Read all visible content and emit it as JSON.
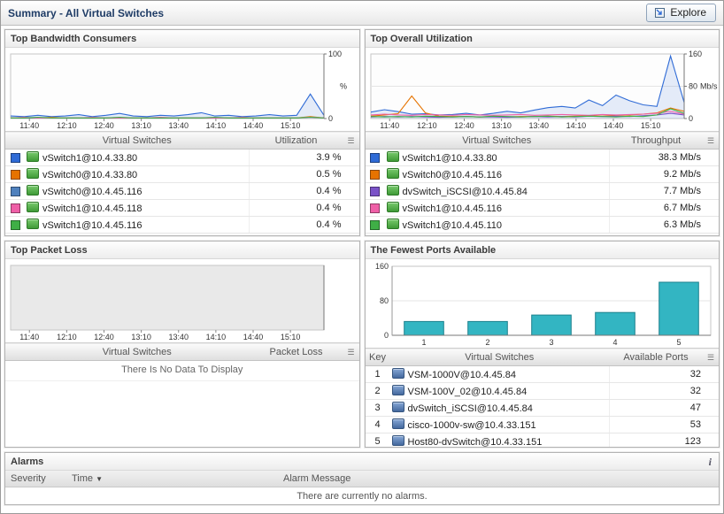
{
  "header": {
    "title": "Summary - All Virtual Switches",
    "explore_label": "Explore"
  },
  "panels": {
    "bandwidth": {
      "title": "Top Bandwidth Consumers",
      "columns": {
        "name": "Virtual Switches",
        "value": "Utilization"
      },
      "rows": [
        {
          "color": "#2f6bd6",
          "name": "vSwitch1@10.4.33.80",
          "value": "3.9 %"
        },
        {
          "color": "#e67300",
          "name": "vSwitch0@10.4.33.80",
          "value": "0.5 %"
        },
        {
          "color": "#4f81bd",
          "name": "vSwitch0@10.4.45.116",
          "value": "0.4 %"
        },
        {
          "color": "#ef5fa7",
          "name": "vSwitch1@10.4.45.118",
          "value": "0.4 %"
        },
        {
          "color": "#3faf46",
          "name": "vSwitch1@10.4.45.116",
          "value": "0.4 %"
        }
      ]
    },
    "utilization": {
      "title": "Top Overall Utilization",
      "columns": {
        "name": "Virtual Switches",
        "value": "Throughput"
      },
      "rows": [
        {
          "color": "#2f6bd6",
          "name": "vSwitch1@10.4.33.80",
          "value": "38.3 Mb/s"
        },
        {
          "color": "#e67300",
          "name": "vSwitch0@10.4.45.116",
          "value": "9.2 Mb/s"
        },
        {
          "color": "#7a52c7",
          "name": "dvSwitch_iSCSI@10.4.45.84",
          "value": "7.7 Mb/s"
        },
        {
          "color": "#ef5fa7",
          "name": "vSwitch1@10.4.45.116",
          "value": "6.7 Mb/s"
        },
        {
          "color": "#3faf46",
          "name": "vSwitch1@10.4.45.110",
          "value": "6.3 Mb/s"
        }
      ]
    },
    "packetloss": {
      "title": "Top Packet Loss",
      "columns": {
        "name": "Virtual Switches",
        "value": "Packet Loss"
      },
      "empty_message": "There Is No Data To Display"
    },
    "ports": {
      "title": "The Fewest Ports Available",
      "columns": {
        "key": "Key",
        "name": "Virtual Switches",
        "value": "Available Ports"
      },
      "rows": [
        {
          "key": "1",
          "name": "VSM-1000V@10.4.45.84",
          "value": "32"
        },
        {
          "key": "2",
          "name": "VSM-100V_02@10.4.45.84",
          "value": "32"
        },
        {
          "key": "3",
          "name": "dvSwitch_iSCSI@10.4.45.84",
          "value": "47"
        },
        {
          "key": "4",
          "name": "cisco-1000v-sw@10.4.33.151",
          "value": "53"
        },
        {
          "key": "5",
          "name": "Host80-dvSwitch@10.4.33.151",
          "value": "123"
        }
      ]
    },
    "alarms": {
      "title": "Alarms",
      "info_icon": "i",
      "columns": {
        "severity": "Severity",
        "time": "Time",
        "message": "Alarm Message"
      },
      "empty_message": "There are currently no alarms."
    }
  },
  "chart_data": [
    {
      "type": "line",
      "title": "Top Bandwidth Consumers",
      "ylim": [
        0,
        100
      ],
      "yticks": [
        0,
        100
      ],
      "yunit": "%",
      "plot_bg": "#fdfdfd",
      "xticks": [
        "11:40",
        "12:10",
        "12:40",
        "13:10",
        "13:40",
        "14:10",
        "14:40",
        "15:10"
      ],
      "series": [
        {
          "name": "vSwitch1@10.4.33.80",
          "color": "#2f6bd6",
          "fill": true,
          "values": [
            4,
            3,
            5,
            3,
            4,
            6,
            3,
            5,
            8,
            4,
            3,
            5,
            4,
            6,
            9,
            4,
            5,
            3,
            4,
            6,
            4,
            5,
            38,
            5
          ]
        },
        {
          "name": "vSwitch0@10.4.33.80",
          "color": "#e67300",
          "values": [
            1,
            1,
            1,
            2,
            1,
            1,
            1,
            1,
            1,
            1,
            1,
            1,
            1,
            1,
            1,
            1,
            1,
            1,
            1,
            1,
            1,
            1,
            3,
            1
          ]
        },
        {
          "name": "vSwitch0@10.4.45.116",
          "color": "#4f81bd",
          "values": [
            1,
            1,
            1,
            1,
            1,
            1,
            1,
            1,
            1,
            1,
            1,
            1,
            1,
            1,
            1,
            1,
            1,
            1,
            1,
            1,
            1,
            1,
            2,
            1
          ]
        },
        {
          "name": "vSwitch1@10.4.45.118",
          "color": "#ef5fa7",
          "values": [
            1,
            2,
            1,
            1,
            1,
            1,
            2,
            1,
            1,
            1,
            1,
            2,
            1,
            1,
            1,
            1,
            1,
            2,
            1,
            1,
            1,
            1,
            2,
            1
          ]
        },
        {
          "name": "vSwitch1@10.4.45.116",
          "color": "#3faf46",
          "values": [
            1,
            1,
            2,
            1,
            1,
            1,
            1,
            1,
            2,
            1,
            1,
            1,
            1,
            1,
            1,
            2,
            1,
            1,
            1,
            1,
            1,
            1,
            2,
            1
          ]
        }
      ]
    },
    {
      "type": "line",
      "title": "Top Overall Utilization",
      "ylim": [
        0,
        160
      ],
      "yticks": [
        0,
        80,
        160
      ],
      "yunit": "Mb/s",
      "plot_bg": "#fdfdfd",
      "xticks": [
        "11:40",
        "12:10",
        "12:40",
        "13:10",
        "13:40",
        "14:10",
        "14:40",
        "15:10"
      ],
      "series": [
        {
          "name": "vSwitch1@10.4.33.80",
          "color": "#2f6bd6",
          "fill": true,
          "values": [
            16,
            22,
            17,
            11,
            12,
            9,
            10,
            13,
            9,
            13,
            18,
            14,
            21,
            27,
            30,
            26,
            46,
            32,
            58,
            44,
            34,
            30,
            155,
            40
          ]
        },
        {
          "name": "vSwitch0@10.4.45.116",
          "color": "#e67300",
          "values": [
            6,
            9,
            12,
            56,
            14,
            6,
            5,
            5,
            4,
            5,
            4,
            5,
            5,
            6,
            5,
            6,
            7,
            6,
            8,
            9,
            11,
            14,
            26,
            18
          ]
        },
        {
          "name": "dvSwitch_iSCSI@10.4.45.84",
          "color": "#7a52c7",
          "values": [
            4,
            5,
            4,
            5,
            4,
            3,
            4,
            5,
            4,
            4,
            3,
            4,
            5,
            4,
            5,
            4,
            6,
            5,
            6,
            5,
            7,
            9,
            13,
            9
          ]
        },
        {
          "name": "vSwitch1@10.4.45.116",
          "color": "#ef5fa7",
          "values": [
            9,
            11,
            9,
            8,
            10,
            9,
            8,
            10,
            9,
            8,
            9,
            10,
            8,
            9,
            10,
            9,
            8,
            10,
            9,
            10,
            11,
            13,
            18,
            11
          ]
        },
        {
          "name": "vSwitch1@10.4.45.110",
          "color": "#3faf46",
          "values": [
            5,
            4,
            5,
            4,
            6,
            5,
            4,
            5,
            4,
            6,
            5,
            4,
            5,
            6,
            4,
            5,
            6,
            5,
            4,
            6,
            5,
            9,
            24,
            13
          ]
        }
      ]
    },
    {
      "type": "line",
      "title": "Top Packet Loss",
      "ylim": [
        0,
        1
      ],
      "yticks": [],
      "yunit": "",
      "plot_bg": "#e9e9e9",
      "xticks": [
        "11:40",
        "12:10",
        "12:40",
        "13:10",
        "13:40",
        "14:10",
        "14:40",
        "15:10"
      ],
      "series": []
    },
    {
      "type": "bar",
      "title": "The Fewest Ports Available",
      "categories": [
        "1",
        "2",
        "3",
        "4",
        "5"
      ],
      "values": [
        32,
        32,
        47,
        53,
        123
      ],
      "ylim": [
        0,
        160
      ],
      "yticks": [
        0,
        80,
        160
      ],
      "bar_color": "#33b5c2",
      "bar_border": "#1d818d",
      "plot_bg": "#ffffff"
    }
  ]
}
